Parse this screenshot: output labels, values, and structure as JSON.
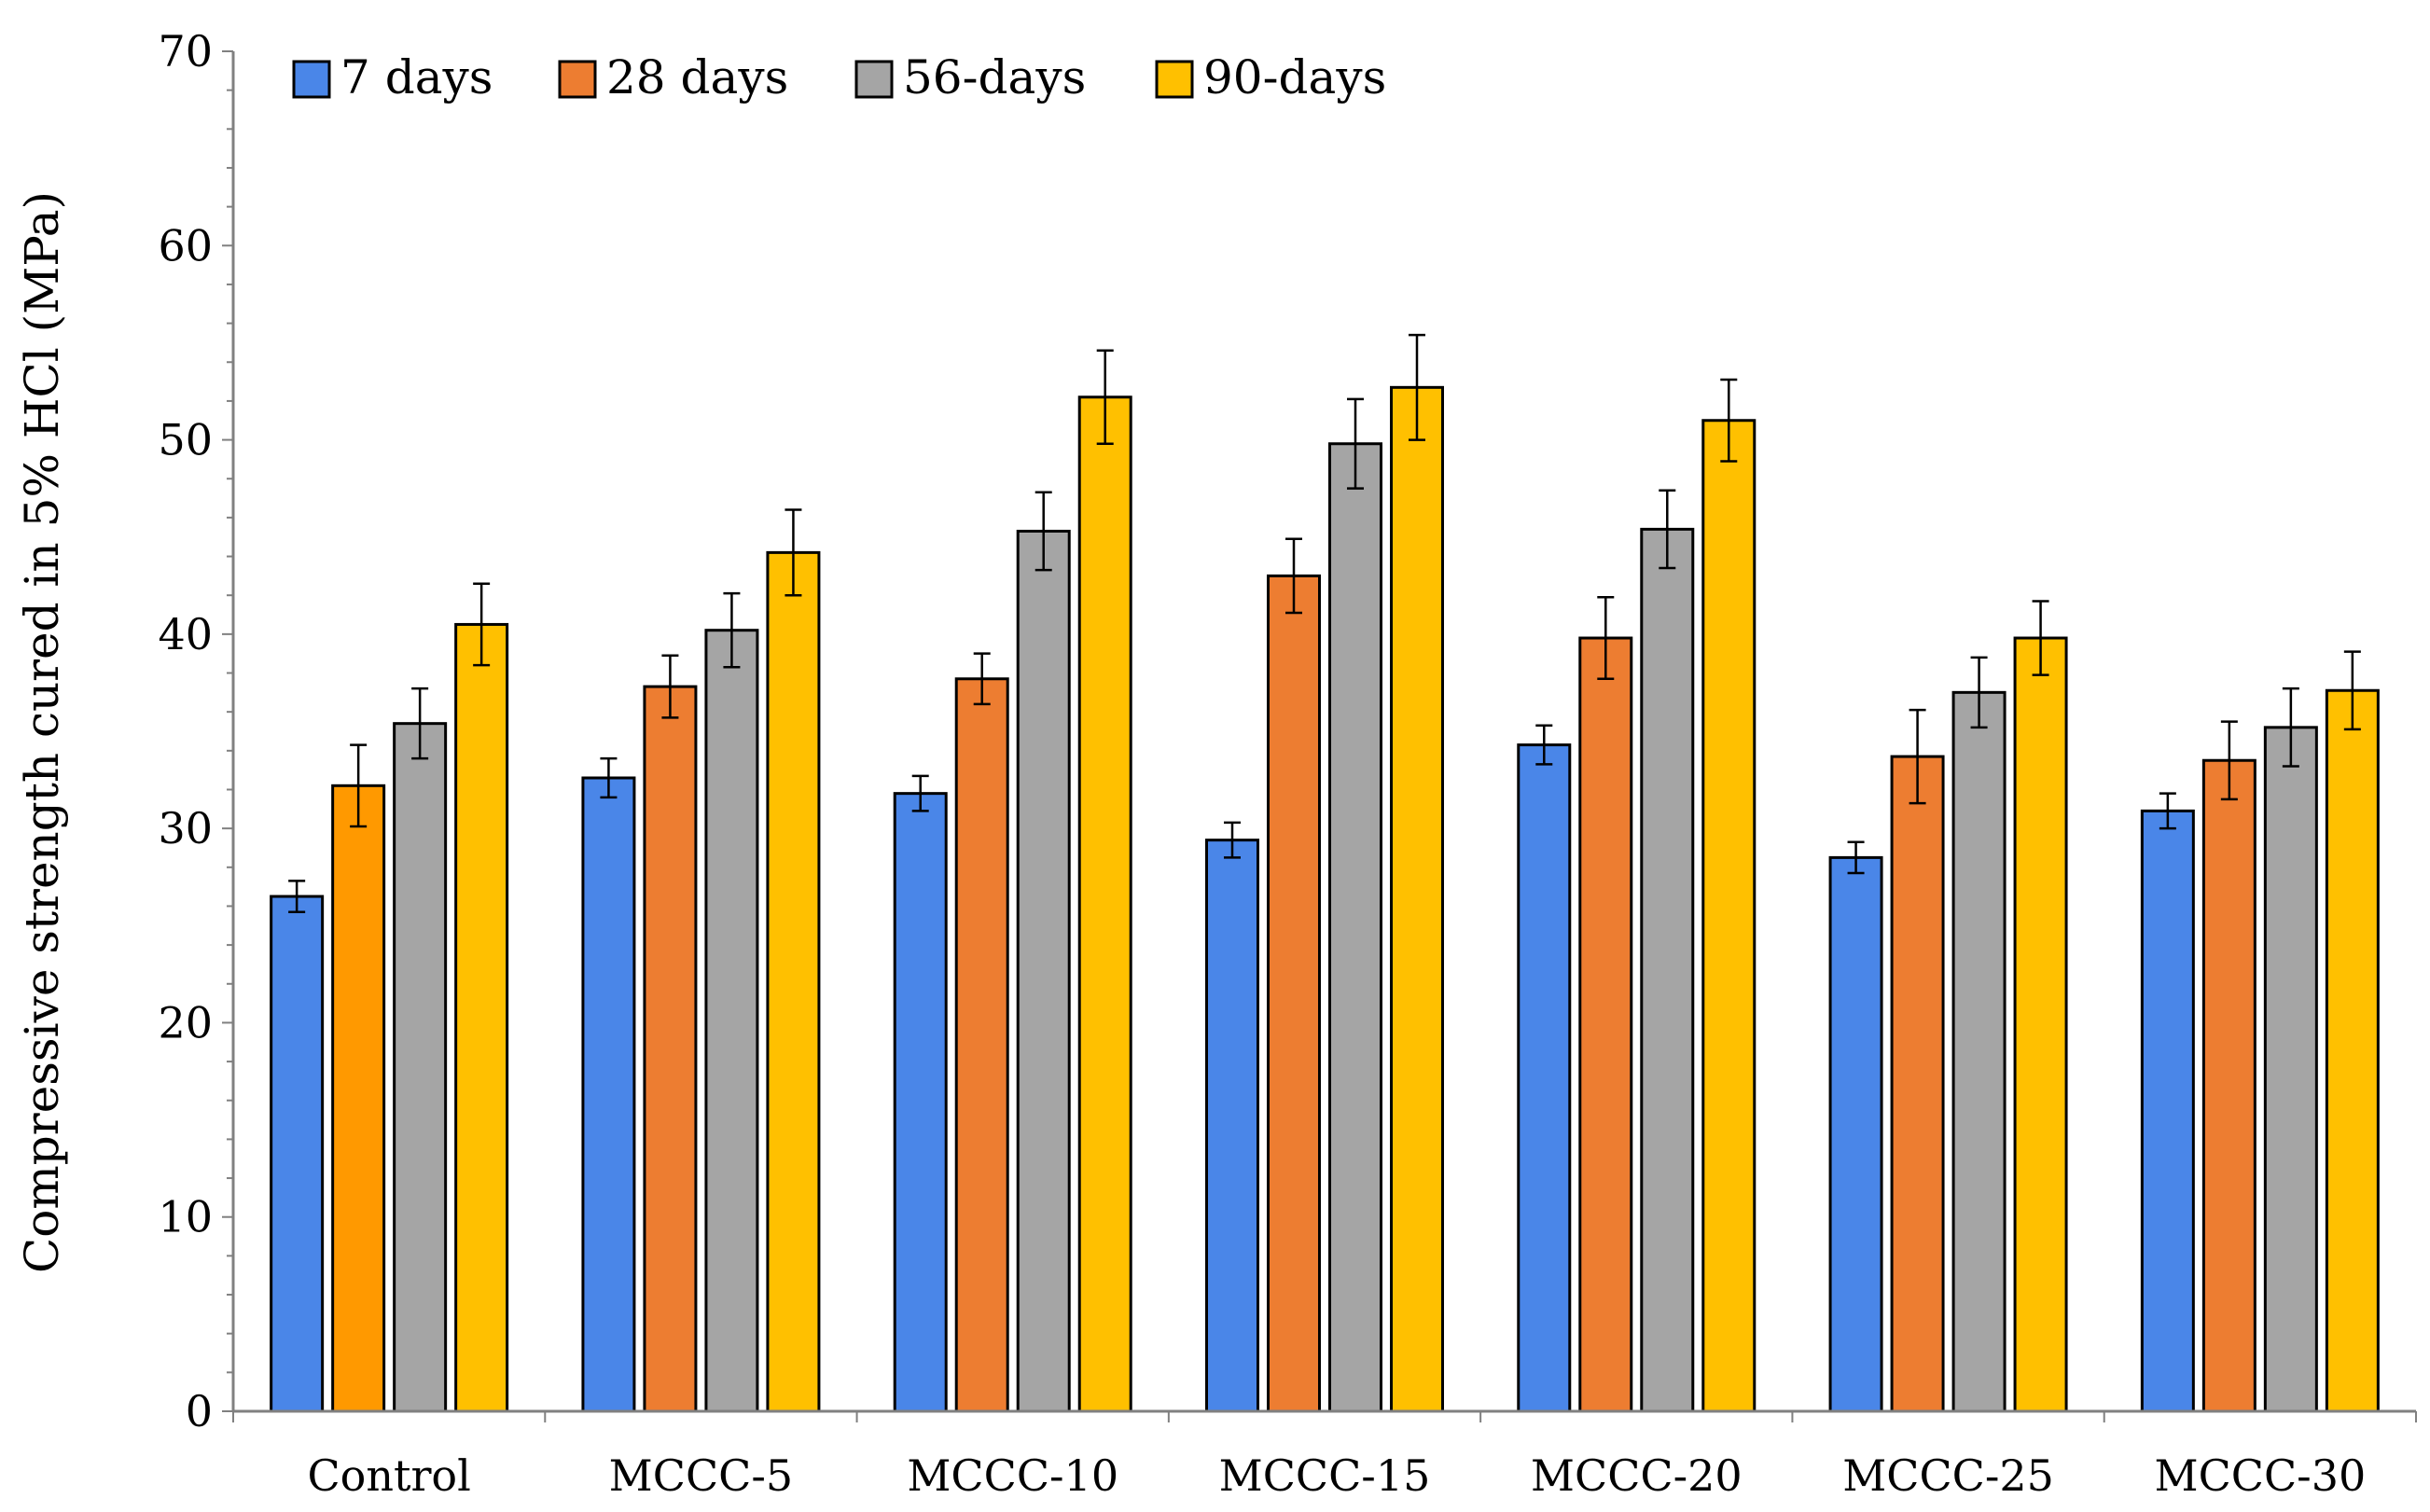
{
  "chart_data": {
    "type": "bar",
    "title": "",
    "xlabel": "",
    "ylabel": "Compressive strength cured in 5% HCl (MPa)",
    "ylim": [
      0,
      70
    ],
    "y_ticks": [
      0,
      10,
      20,
      30,
      40,
      50,
      60,
      70
    ],
    "grid": false,
    "legend_position": "top-left",
    "categories": [
      "Control",
      "MCCC-5",
      "MCCC-10",
      "MCCC-15",
      "MCCC-20",
      "MCCC-25",
      "MCCC-30"
    ],
    "series": [
      {
        "name": "7 days",
        "color": "#4A86E8",
        "values": [
          26.5,
          32.6,
          31.8,
          29.4,
          34.3,
          28.5,
          30.9
        ],
        "errors": [
          0.8,
          1.0,
          0.9,
          0.9,
          1.0,
          0.8,
          0.9
        ]
      },
      {
        "name": "28 days",
        "color": "#ED7D31",
        "point_colors": [
          "#FF9900"
        ],
        "values": [
          32.2,
          37.3,
          37.7,
          43.0,
          39.8,
          33.7,
          33.5
        ],
        "errors": [
          2.1,
          1.6,
          1.3,
          1.9,
          2.1,
          2.4,
          2.0
        ]
      },
      {
        "name": "56-days",
        "color": "#A5A5A5",
        "values": [
          35.4,
          40.2,
          45.3,
          49.8,
          45.4,
          37.0,
          35.2
        ],
        "errors": [
          1.8,
          1.9,
          2.0,
          2.3,
          2.0,
          1.8,
          2.0
        ]
      },
      {
        "name": "90-days",
        "color": "#FFC000",
        "values": [
          40.5,
          44.2,
          52.2,
          52.7,
          51.0,
          39.8,
          37.1
        ],
        "errors": [
          2.1,
          2.2,
          2.4,
          2.7,
          2.1,
          1.9,
          2.0
        ]
      }
    ]
  }
}
